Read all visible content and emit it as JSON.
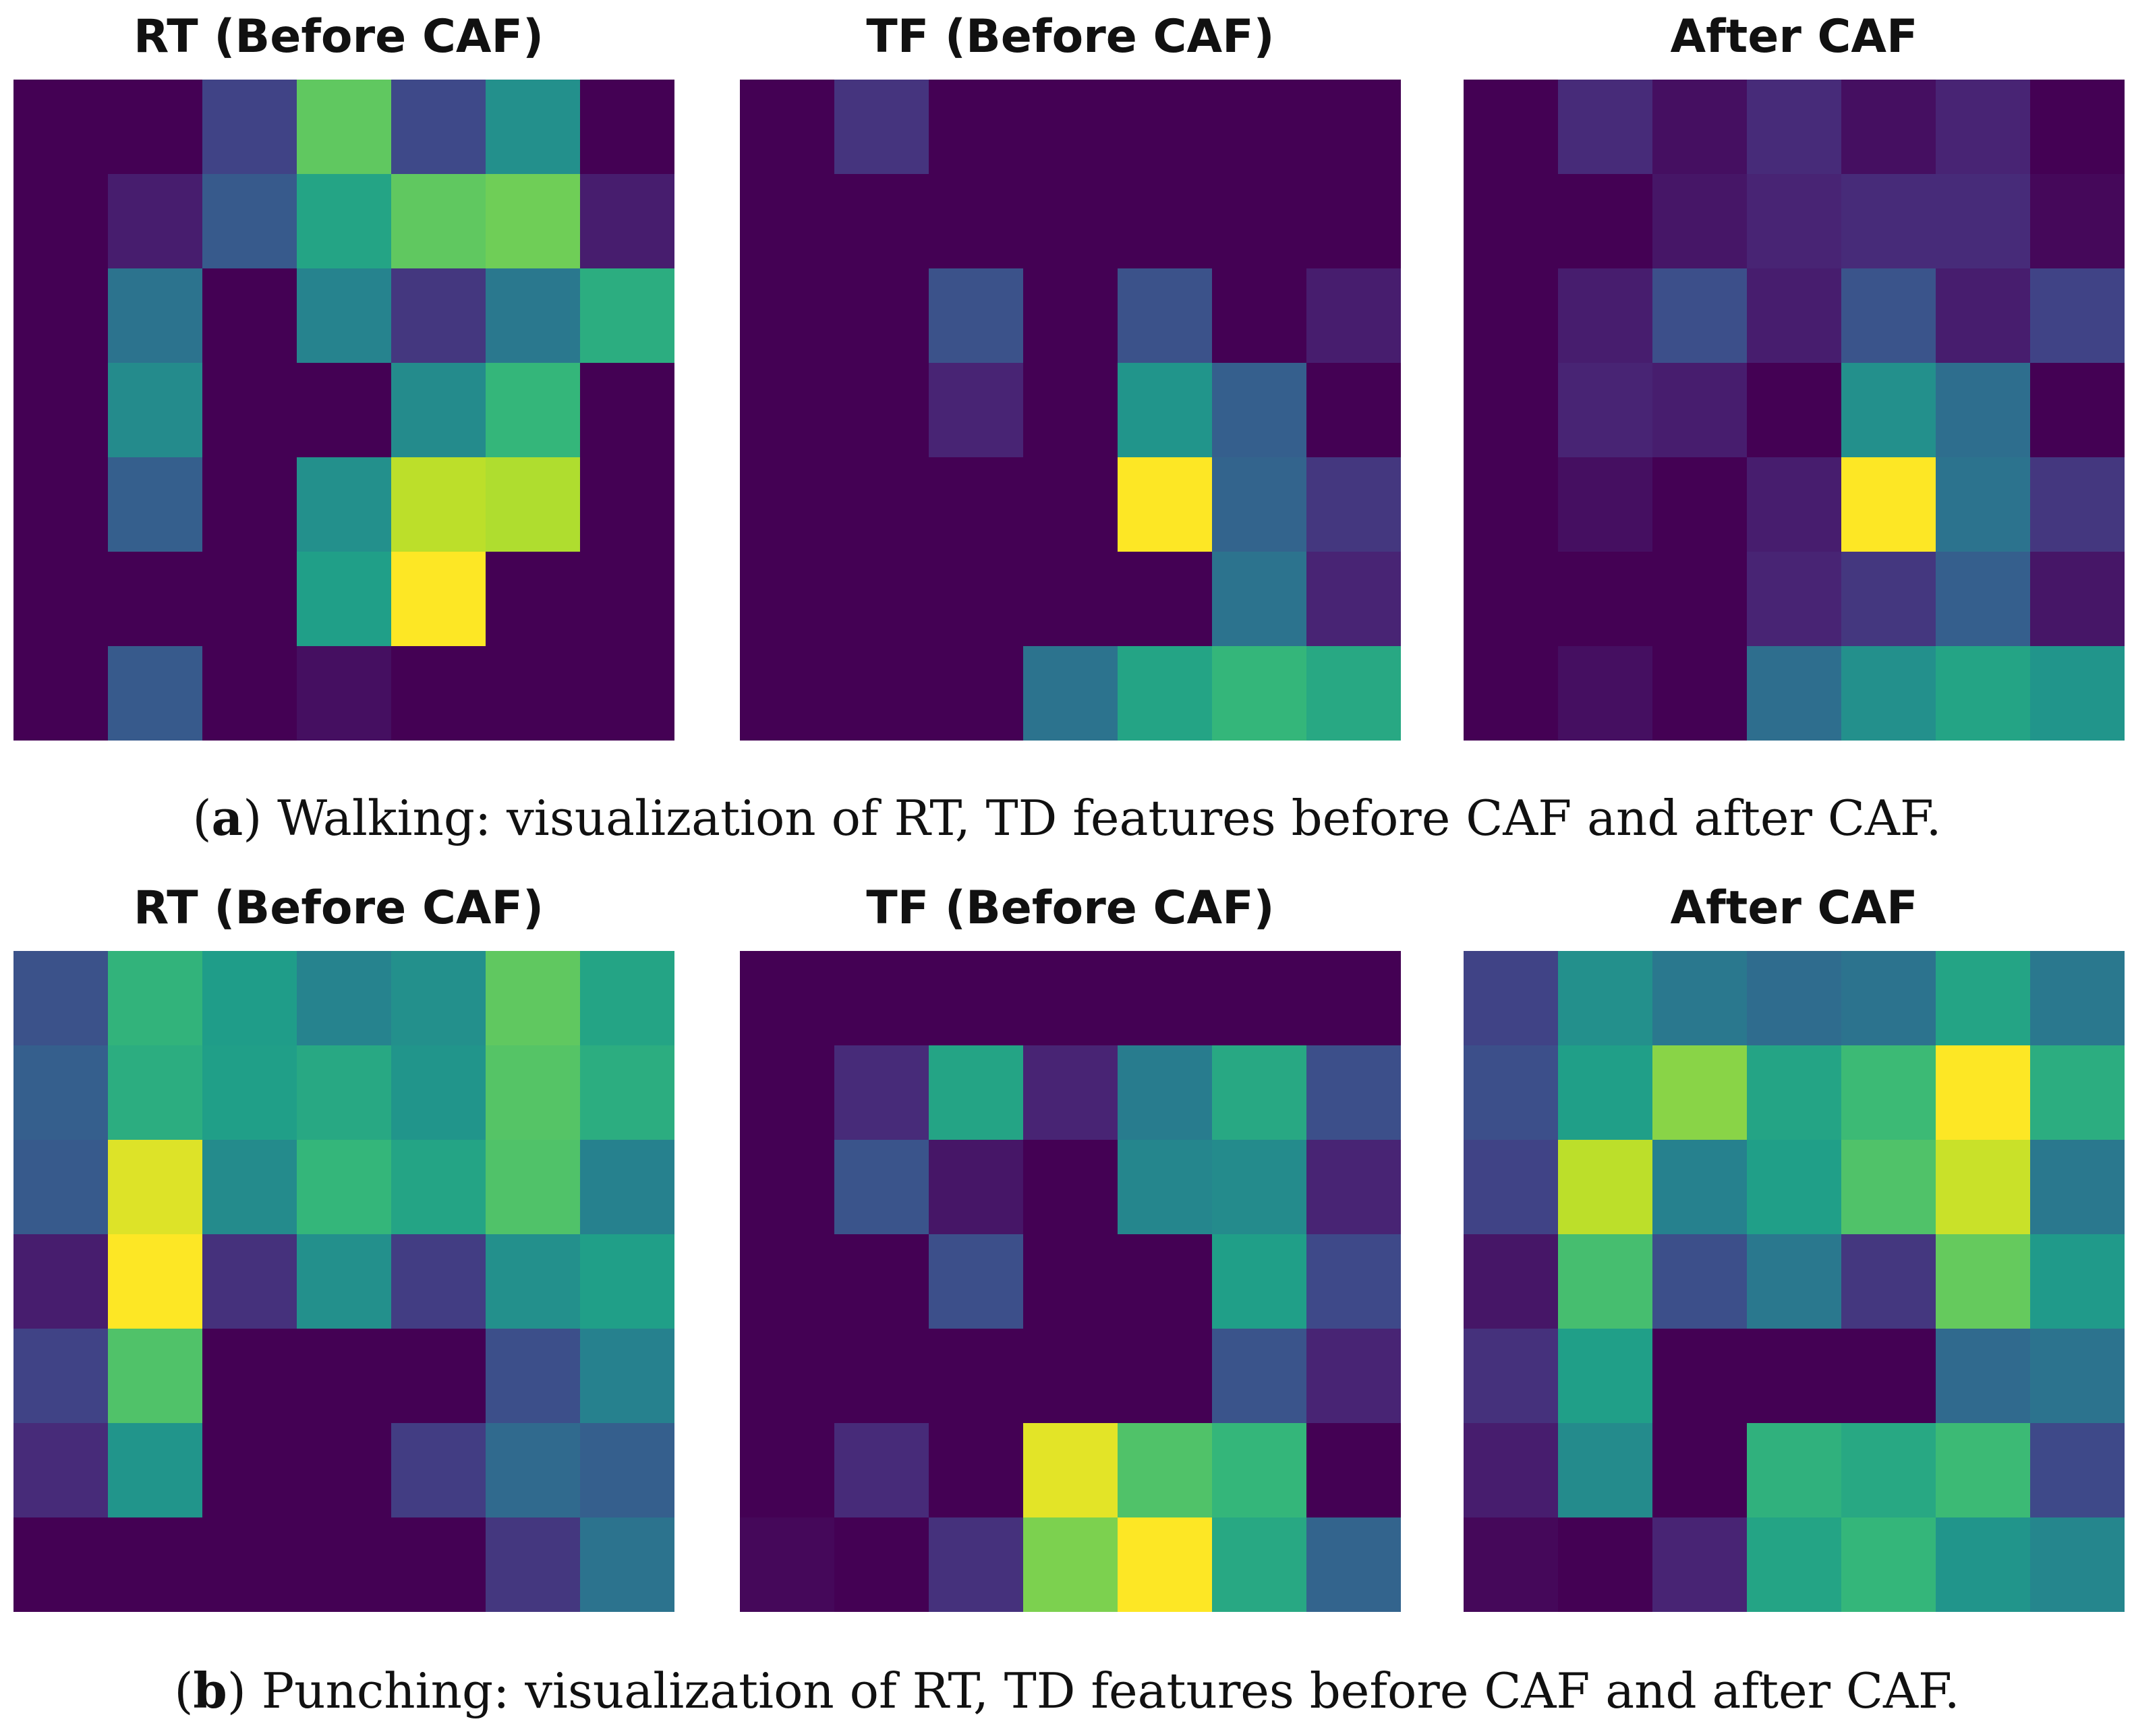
{
  "colormap": [
    "#440154",
    "#482878",
    "#3e4a89",
    "#31688e",
    "#26828e",
    "#1f9e89",
    "#35b779",
    "#6ece58",
    "#b5de2b",
    "#fde725"
  ],
  "figures": [
    {
      "caption_letter": "a",
      "caption_text": "Walking: visualization of RT, TD features before CAF and after CAF.",
      "panels": [
        {
          "title": "RT (Before CAF)"
        },
        {
          "title": "TF (Before CAF)"
        },
        {
          "title": "After CAF"
        }
      ]
    },
    {
      "caption_letter": "b",
      "caption_text": "Punching: visualization of RT, TD features before CAF and after CAF.",
      "panels": [
        {
          "title": "RT (Before CAF)"
        },
        {
          "title": "TF (Before CAF)"
        },
        {
          "title": "After CAF"
        }
      ]
    }
  ],
  "chart_data": [
    {
      "type": "heatmap",
      "title": "RT (Before CAF)",
      "rows": 7,
      "cols": 7,
      "vmin": 0,
      "vmax": 1,
      "values": [
        [
          0.0,
          0.0,
          0.2,
          0.75,
          0.22,
          0.5,
          0.0
        ],
        [
          0.0,
          0.08,
          0.28,
          0.58,
          0.75,
          0.78,
          0.08
        ],
        [
          0.0,
          0.38,
          0.0,
          0.45,
          0.16,
          0.4,
          0.62
        ],
        [
          0.0,
          0.48,
          0.0,
          0.0,
          0.48,
          0.66,
          0.0
        ],
        [
          0.0,
          0.3,
          0.0,
          0.5,
          0.9,
          0.88,
          0.0
        ],
        [
          0.0,
          0.0,
          0.0,
          0.56,
          1.0,
          0.0,
          0.0
        ],
        [
          0.0,
          0.28,
          0.0,
          0.04,
          0.0,
          0.0,
          0.0
        ]
      ]
    },
    {
      "type": "heatmap",
      "title": "TF (Before CAF)",
      "rows": 7,
      "cols": 7,
      "vmin": 0,
      "vmax": 1,
      "values": [
        [
          0.0,
          0.15,
          0.0,
          0.0,
          0.0,
          0.0,
          0.0
        ],
        [
          0.0,
          0.0,
          0.0,
          0.0,
          0.0,
          0.0,
          0.0
        ],
        [
          0.0,
          0.0,
          0.25,
          0.0,
          0.25,
          0.0,
          0.08
        ],
        [
          0.0,
          0.0,
          0.1,
          0.0,
          0.52,
          0.3,
          0.0
        ],
        [
          0.0,
          0.0,
          0.0,
          0.0,
          1.0,
          0.32,
          0.16
        ],
        [
          0.0,
          0.0,
          0.0,
          0.0,
          0.0,
          0.38,
          0.1
        ],
        [
          0.0,
          0.0,
          0.0,
          0.38,
          0.58,
          0.66,
          0.6
        ]
      ]
    },
    {
      "type": "heatmap",
      "title": "After CAF",
      "rows": 7,
      "cols": 7,
      "vmin": 0,
      "vmax": 1,
      "values": [
        [
          0.0,
          0.12,
          0.04,
          0.12,
          0.04,
          0.1,
          0.0
        ],
        [
          0.0,
          0.0,
          0.06,
          0.1,
          0.12,
          0.12,
          0.02
        ],
        [
          0.0,
          0.08,
          0.24,
          0.08,
          0.26,
          0.08,
          0.2
        ],
        [
          0.0,
          0.1,
          0.08,
          0.0,
          0.5,
          0.36,
          0.0
        ],
        [
          0.0,
          0.04,
          0.0,
          0.08,
          1.0,
          0.38,
          0.16
        ],
        [
          0.0,
          0.0,
          0.0,
          0.1,
          0.16,
          0.3,
          0.06
        ],
        [
          0.0,
          0.04,
          0.0,
          0.36,
          0.5,
          0.58,
          0.52
        ]
      ]
    },
    {
      "type": "heatmap",
      "title": "RT (Before CAF)",
      "rows": 7,
      "cols": 7,
      "vmin": 0,
      "vmax": 1,
      "values": [
        [
          0.25,
          0.65,
          0.55,
          0.45,
          0.5,
          0.75,
          0.58
        ],
        [
          0.3,
          0.62,
          0.56,
          0.6,
          0.52,
          0.73,
          0.62
        ],
        [
          0.28,
          0.95,
          0.48,
          0.66,
          0.58,
          0.72,
          0.44
        ],
        [
          0.08,
          1.0,
          0.14,
          0.5,
          0.18,
          0.5,
          0.56
        ],
        [
          0.2,
          0.72,
          0.0,
          0.0,
          0.0,
          0.24,
          0.44
        ],
        [
          0.12,
          0.52,
          0.0,
          0.0,
          0.18,
          0.34,
          0.3
        ],
        [
          0.0,
          0.0,
          0.0,
          0.0,
          0.0,
          0.16,
          0.38
        ]
      ]
    },
    {
      "type": "heatmap",
      "title": "TF (Before CAF)",
      "rows": 7,
      "cols": 7,
      "vmin": 0,
      "vmax": 1,
      "values": [
        [
          0.0,
          0.0,
          0.0,
          0.0,
          0.0,
          0.0,
          0.0
        ],
        [
          0.0,
          0.12,
          0.58,
          0.1,
          0.42,
          0.6,
          0.24
        ],
        [
          0.0,
          0.26,
          0.06,
          0.0,
          0.46,
          0.48,
          0.1
        ],
        [
          0.0,
          0.0,
          0.24,
          0.0,
          0.0,
          0.56,
          0.22
        ],
        [
          0.0,
          0.0,
          0.0,
          0.0,
          0.0,
          0.26,
          0.1
        ],
        [
          0.0,
          0.12,
          0.0,
          0.96,
          0.72,
          0.66,
          0.0
        ],
        [
          0.02,
          0.0,
          0.14,
          0.8,
          1.0,
          0.6,
          0.32
        ]
      ]
    },
    {
      "type": "heatmap",
      "title": "After CAF",
      "rows": 7,
      "cols": 7,
      "vmin": 0,
      "vmax": 1,
      "values": [
        [
          0.2,
          0.5,
          0.4,
          0.35,
          0.38,
          0.58,
          0.4
        ],
        [
          0.24,
          0.56,
          0.82,
          0.58,
          0.68,
          1.0,
          0.62
        ],
        [
          0.2,
          0.9,
          0.44,
          0.56,
          0.72,
          0.92,
          0.4
        ],
        [
          0.06,
          0.7,
          0.24,
          0.4,
          0.16,
          0.76,
          0.54
        ],
        [
          0.14,
          0.56,
          0.0,
          0.0,
          0.0,
          0.34,
          0.38
        ],
        [
          0.08,
          0.48,
          0.0,
          0.64,
          0.6,
          0.68,
          0.22
        ],
        [
          0.02,
          0.0,
          0.1,
          0.58,
          0.66,
          0.52,
          0.46
        ]
      ]
    }
  ]
}
